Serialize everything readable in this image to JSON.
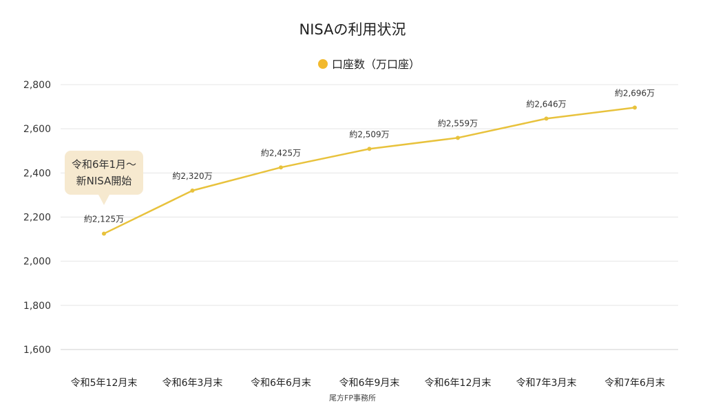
{
  "chart_data": {
    "type": "line",
    "title": "NISAの利用状況",
    "categories": [
      "令和5年12月末",
      "令和6年3月末",
      "令和6年6月末",
      "令和6年9月末",
      "令和6年12月末",
      "令和7年3月末",
      "令和7年6月末"
    ],
    "series": [
      {
        "name": "口座数（万口座）",
        "values": [
          2125,
          2320,
          2425,
          2509,
          2559,
          2646,
          2696
        ],
        "color": "#e8c23c",
        "marker_color": "#f2b92d"
      }
    ],
    "data_labels": [
      "約2,125万",
      "約2,320万",
      "約2,425万",
      "約2,509万",
      "約2,559万",
      "約2,646万",
      "約2,696万"
    ],
    "ylim": [
      1600,
      2800
    ],
    "yticks": [
      1600,
      1800,
      2000,
      2200,
      2400,
      2600,
      2800
    ],
    "ytick_labels": [
      "1,600",
      "1,800",
      "2,000",
      "2,200",
      "2,400",
      "2,600",
      "2,800"
    ],
    "xlabel": "",
    "ylabel": "",
    "grid": true,
    "legend_position": "top-center",
    "annotations": [
      {
        "category_index": 0,
        "lines": [
          "令和6年1月〜",
          "新NISA開始"
        ],
        "fill": "#f6e9cf"
      }
    ]
  },
  "source": "尾方FP事務所"
}
